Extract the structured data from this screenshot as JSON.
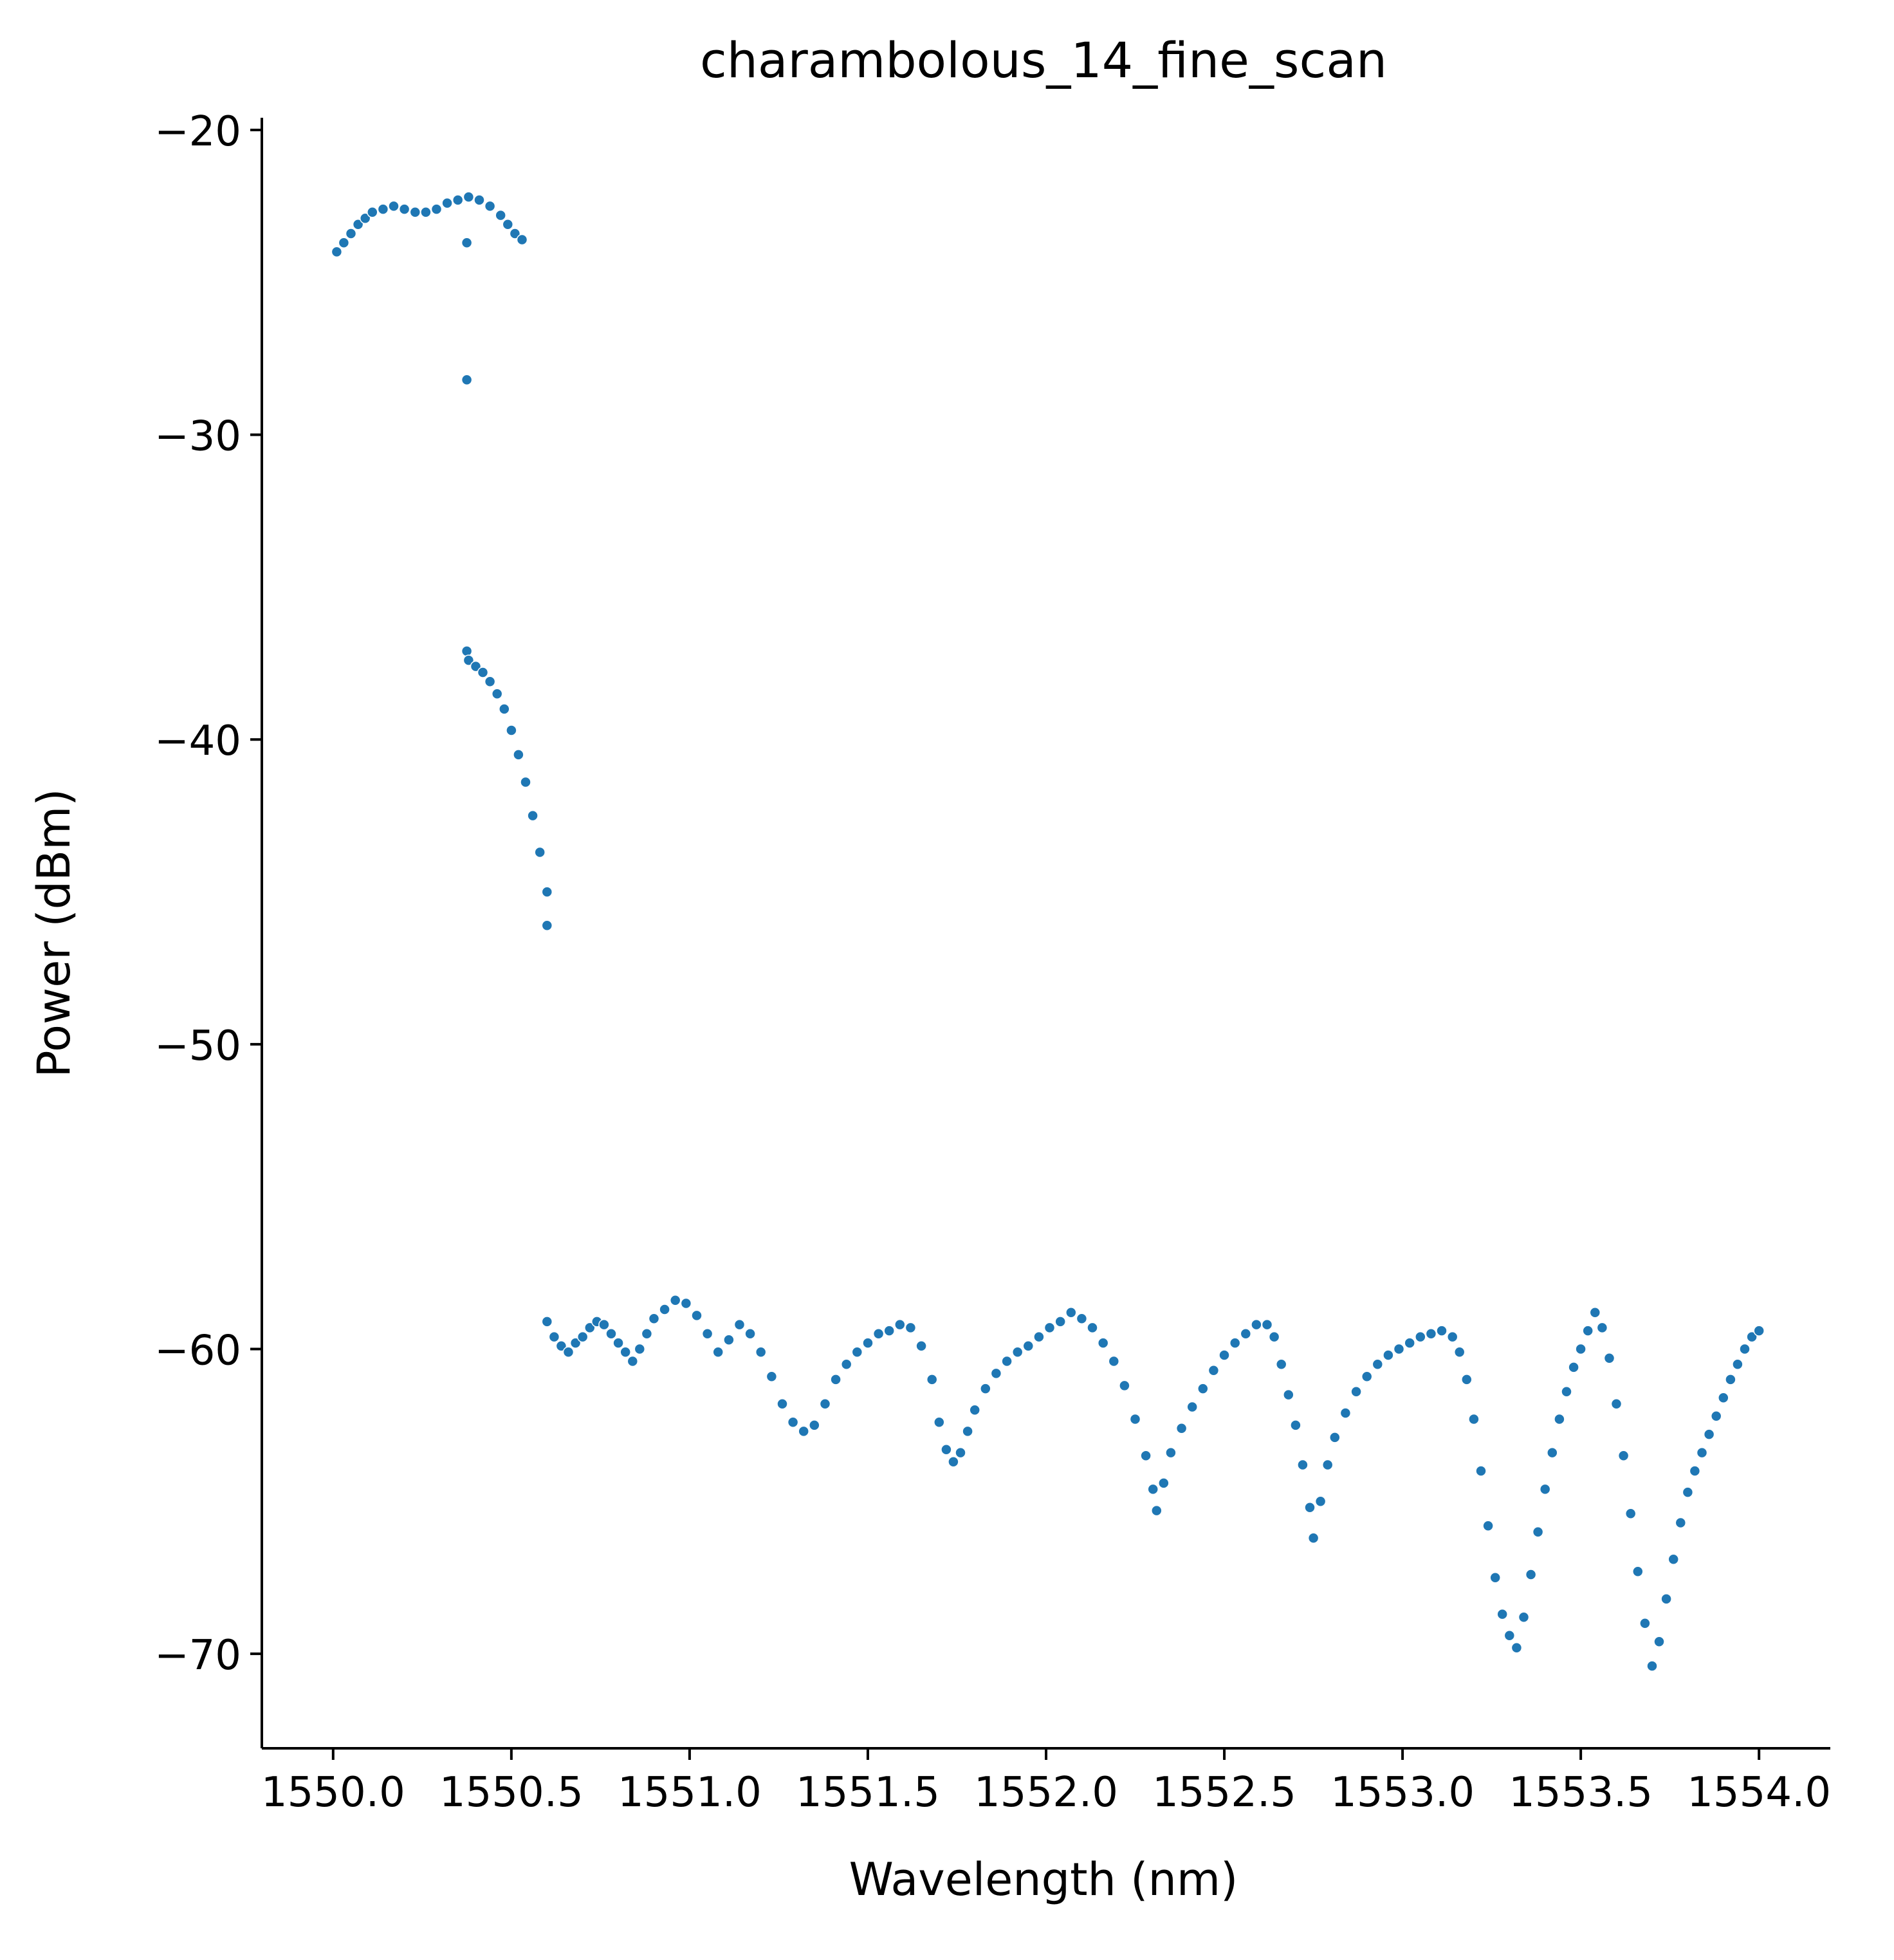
{
  "chart_data": {
    "type": "scatter",
    "title": "charambolous_14_fine_scan",
    "xlabel": "Wavelength (nm)",
    "ylabel": "Power (dBm)",
    "xlim": [
      1549.8,
      1554.2
    ],
    "ylim": [
      -73.1,
      -19.6
    ],
    "xticks": [
      1550.0,
      1550.5,
      1551.0,
      1551.5,
      1552.0,
      1552.5,
      1553.0,
      1553.5,
      1554.0
    ],
    "xtick_labels": [
      "1550.0",
      "1550.5",
      "1551.0",
      "1551.5",
      "1552.0",
      "1552.5",
      "1553.0",
      "1553.5",
      "1554.0"
    ],
    "yticks": [
      -20,
      -30,
      -40,
      -50,
      -60,
      -70
    ],
    "ytick_labels": [
      "−20",
      "−30",
      "−40",
      "−50",
      "−60",
      "−70"
    ],
    "grid": false,
    "legend": "none",
    "marker_color": "#1f77b4",
    "marker_edge_color": "#ffffff",
    "series": [
      {
        "points": [
          [
            1550.01,
            -24.0
          ],
          [
            1550.03,
            -23.7
          ],
          [
            1550.05,
            -23.4
          ],
          [
            1550.07,
            -23.1
          ],
          [
            1550.09,
            -22.9
          ],
          [
            1550.11,
            -22.7
          ],
          [
            1550.14,
            -22.6
          ],
          [
            1550.17,
            -22.5
          ],
          [
            1550.2,
            -22.6
          ],
          [
            1550.23,
            -22.7
          ],
          [
            1550.26,
            -22.7
          ],
          [
            1550.29,
            -22.6
          ],
          [
            1550.32,
            -22.4
          ],
          [
            1550.35,
            -22.3
          ],
          [
            1550.38,
            -22.2
          ],
          [
            1550.41,
            -22.3
          ],
          [
            1550.44,
            -22.5
          ],
          [
            1550.47,
            -22.8
          ],
          [
            1550.49,
            -23.1
          ],
          [
            1550.51,
            -23.4
          ],
          [
            1550.53,
            -23.6
          ],
          [
            1550.375,
            -23.7
          ],
          [
            1550.375,
            -28.2
          ],
          [
            1550.375,
            -37.1
          ],
          [
            1550.38,
            -37.4
          ],
          [
            1550.4,
            -37.6
          ],
          [
            1550.42,
            -37.8
          ],
          [
            1550.44,
            -38.1
          ],
          [
            1550.46,
            -38.5
          ],
          [
            1550.48,
            -39.0
          ],
          [
            1550.5,
            -39.7
          ],
          [
            1550.52,
            -40.5
          ],
          [
            1550.54,
            -41.4
          ],
          [
            1550.56,
            -42.5
          ],
          [
            1550.58,
            -43.7
          ],
          [
            1550.6,
            -45.0
          ],
          [
            1550.6,
            -46.1
          ],
          [
            1550.6,
            -59.1
          ],
          [
            1550.62,
            -59.6
          ],
          [
            1550.64,
            -59.9
          ],
          [
            1550.66,
            -60.1
          ],
          [
            1550.68,
            -59.8
          ],
          [
            1550.7,
            -59.6
          ],
          [
            1550.72,
            -59.3
          ],
          [
            1550.74,
            -59.1
          ],
          [
            1550.76,
            -59.2
          ],
          [
            1550.78,
            -59.5
          ],
          [
            1550.8,
            -59.8
          ],
          [
            1550.82,
            -60.1
          ],
          [
            1550.84,
            -60.4
          ],
          [
            1550.86,
            -60.0
          ],
          [
            1550.88,
            -59.5
          ],
          [
            1550.9,
            -59.0
          ],
          [
            1550.93,
            -58.7
          ],
          [
            1550.96,
            -58.4
          ],
          [
            1550.99,
            -58.5
          ],
          [
            1551.02,
            -58.9
          ],
          [
            1551.05,
            -59.5
          ],
          [
            1551.08,
            -60.1
          ],
          [
            1551.11,
            -59.7
          ],
          [
            1551.14,
            -59.2
          ],
          [
            1551.17,
            -59.5
          ],
          [
            1551.2,
            -60.1
          ],
          [
            1551.23,
            -60.9
          ],
          [
            1551.26,
            -61.8
          ],
          [
            1551.29,
            -62.4
          ],
          [
            1551.32,
            -62.7
          ],
          [
            1551.35,
            -62.5
          ],
          [
            1551.38,
            -61.8
          ],
          [
            1551.41,
            -61.0
          ],
          [
            1551.44,
            -60.5
          ],
          [
            1551.47,
            -60.1
          ],
          [
            1551.5,
            -59.8
          ],
          [
            1551.53,
            -59.5
          ],
          [
            1551.56,
            -59.4
          ],
          [
            1551.59,
            -59.2
          ],
          [
            1551.62,
            -59.3
          ],
          [
            1551.65,
            -59.9
          ],
          [
            1551.68,
            -61.0
          ],
          [
            1551.7,
            -62.4
          ],
          [
            1551.72,
            -63.3
          ],
          [
            1551.74,
            -63.7
          ],
          [
            1551.76,
            -63.4
          ],
          [
            1551.78,
            -62.7
          ],
          [
            1551.8,
            -62.0
          ],
          [
            1551.83,
            -61.3
          ],
          [
            1551.86,
            -60.8
          ],
          [
            1551.89,
            -60.4
          ],
          [
            1551.92,
            -60.1
          ],
          [
            1551.95,
            -59.9
          ],
          [
            1551.98,
            -59.6
          ],
          [
            1552.01,
            -59.3
          ],
          [
            1552.04,
            -59.1
          ],
          [
            1552.07,
            -58.8
          ],
          [
            1552.1,
            -59.0
          ],
          [
            1552.13,
            -59.3
          ],
          [
            1552.16,
            -59.8
          ],
          [
            1552.19,
            -60.4
          ],
          [
            1552.22,
            -61.2
          ],
          [
            1552.25,
            -62.3
          ],
          [
            1552.28,
            -63.5
          ],
          [
            1552.3,
            -64.6
          ],
          [
            1552.31,
            -65.3
          ],
          [
            1552.33,
            -64.4
          ],
          [
            1552.35,
            -63.4
          ],
          [
            1552.38,
            -62.6
          ],
          [
            1552.41,
            -61.9
          ],
          [
            1552.44,
            -61.3
          ],
          [
            1552.47,
            -60.7
          ],
          [
            1552.5,
            -60.2
          ],
          [
            1552.53,
            -59.8
          ],
          [
            1552.56,
            -59.5
          ],
          [
            1552.59,
            -59.2
          ],
          [
            1552.62,
            -59.2
          ],
          [
            1552.64,
            -59.6
          ],
          [
            1552.66,
            -60.5
          ],
          [
            1552.68,
            -61.5
          ],
          [
            1552.7,
            -62.5
          ],
          [
            1552.72,
            -63.8
          ],
          [
            1552.74,
            -65.2
          ],
          [
            1552.75,
            -66.2
          ],
          [
            1552.77,
            -65.0
          ],
          [
            1552.79,
            -63.8
          ],
          [
            1552.81,
            -62.9
          ],
          [
            1552.84,
            -62.1
          ],
          [
            1552.87,
            -61.4
          ],
          [
            1552.9,
            -60.9
          ],
          [
            1552.93,
            -60.5
          ],
          [
            1552.96,
            -60.2
          ],
          [
            1552.99,
            -60.0
          ],
          [
            1553.02,
            -59.8
          ],
          [
            1553.05,
            -59.6
          ],
          [
            1553.08,
            -59.5
          ],
          [
            1553.11,
            -59.4
          ],
          [
            1553.14,
            -59.6
          ],
          [
            1553.16,
            -60.1
          ],
          [
            1553.18,
            -61.0
          ],
          [
            1553.2,
            -62.3
          ],
          [
            1553.22,
            -64.0
          ],
          [
            1553.24,
            -65.8
          ],
          [
            1553.26,
            -67.5
          ],
          [
            1553.28,
            -68.7
          ],
          [
            1553.3,
            -69.4
          ],
          [
            1553.32,
            -69.8
          ],
          [
            1553.34,
            -68.8
          ],
          [
            1553.36,
            -67.4
          ],
          [
            1553.38,
            -66.0
          ],
          [
            1553.4,
            -64.6
          ],
          [
            1553.42,
            -63.4
          ],
          [
            1553.44,
            -62.3
          ],
          [
            1553.46,
            -61.4
          ],
          [
            1553.48,
            -60.6
          ],
          [
            1553.5,
            -60.0
          ],
          [
            1553.52,
            -59.4
          ],
          [
            1553.54,
            -58.8
          ],
          [
            1553.56,
            -59.3
          ],
          [
            1553.58,
            -60.3
          ],
          [
            1553.6,
            -61.8
          ],
          [
            1553.62,
            -63.5
          ],
          [
            1553.64,
            -65.4
          ],
          [
            1553.66,
            -67.3
          ],
          [
            1553.68,
            -69.0
          ],
          [
            1553.7,
            -70.4
          ],
          [
            1553.72,
            -69.6
          ],
          [
            1553.74,
            -68.2
          ],
          [
            1553.76,
            -66.9
          ],
          [
            1553.78,
            -65.7
          ],
          [
            1553.8,
            -64.7
          ],
          [
            1553.82,
            -64.0
          ],
          [
            1553.84,
            -63.4
          ],
          [
            1553.86,
            -62.8
          ],
          [
            1553.88,
            -62.2
          ],
          [
            1553.9,
            -61.6
          ],
          [
            1553.92,
            -61.0
          ],
          [
            1553.94,
            -60.5
          ],
          [
            1553.96,
            -60.0
          ],
          [
            1553.98,
            -59.6
          ],
          [
            1554.0,
            -59.4
          ]
        ]
      }
    ]
  }
}
